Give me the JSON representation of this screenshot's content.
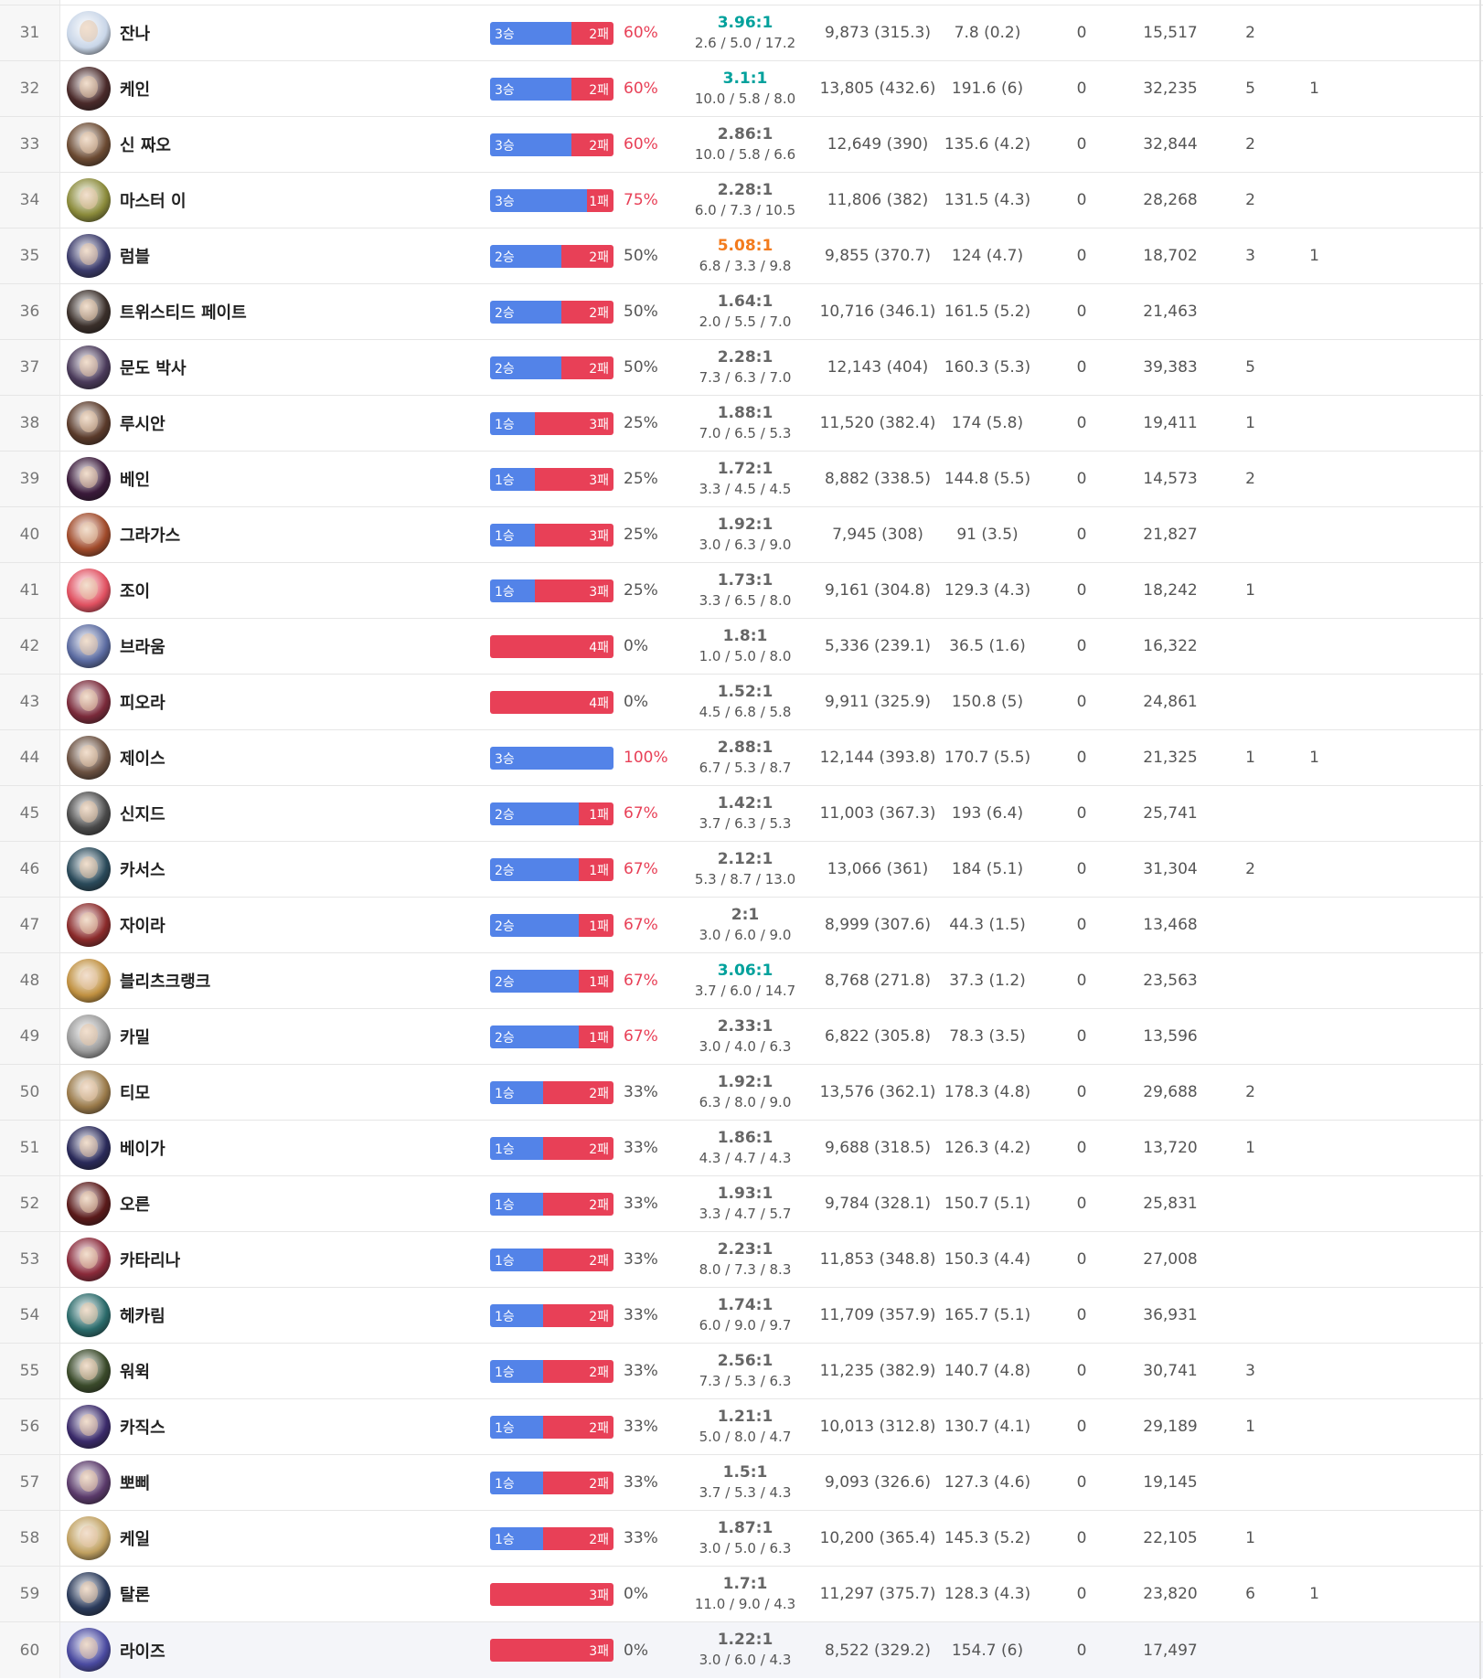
{
  "rows": [
    {
      "rank": "31",
      "name": "잔나",
      "wins": 3,
      "losses": 2,
      "win_label": "3승",
      "loss_label": "2패",
      "winrate": "60%",
      "ratio": "3.96:1",
      "kda": "2.6 / 5.0  / 17.2",
      "dmg": "9,873 (315.3)",
      "cs": "7.8 (0.2)",
      "zero": "0",
      "gold": "15,517",
      "a": "2",
      "b": "",
      "color": "#c9d6e8"
    },
    {
      "rank": "32",
      "name": "케인",
      "wins": 3,
      "losses": 2,
      "win_label": "3승",
      "loss_label": "2패",
      "winrate": "60%",
      "ratio": "3.1:1",
      "kda": "10.0 / 5.8  / 8.0",
      "dmg": "13,805 (432.6)",
      "cs": "191.6 (6)",
      "zero": "0",
      "gold": "32,235",
      "a": "5",
      "b": "1",
      "color": "#4a2a2a"
    },
    {
      "rank": "33",
      "name": "신 짜오",
      "wins": 3,
      "losses": 2,
      "win_label": "3승",
      "loss_label": "2패",
      "winrate": "60%",
      "ratio": "2.86:1",
      "kda": "10.0 / 5.8  / 6.6",
      "dmg": "12,649 (390)",
      "cs": "135.6 (4.2)",
      "zero": "0",
      "gold": "32,844",
      "a": "2",
      "b": "",
      "color": "#6b4a32"
    },
    {
      "rank": "34",
      "name": "마스터 이",
      "wins": 3,
      "losses": 1,
      "win_label": "3승",
      "loss_label": "1패",
      "winrate": "75%",
      "ratio": "2.28:1",
      "kda": "6.0 / 7.3  / 10.5",
      "dmg": "11,806 (382)",
      "cs": "131.5 (4.3)",
      "zero": "0",
      "gold": "28,268",
      "a": "2",
      "b": "",
      "color": "#8a8a3a"
    },
    {
      "rank": "35",
      "name": "럼블",
      "wins": 2,
      "losses": 2,
      "win_label": "2승",
      "loss_label": "2패",
      "winrate": "50%",
      "ratio": "5.08:1",
      "kda": "6.8 / 3.3  / 9.8",
      "dmg": "9,855 (370.7)",
      "cs": "124 (4.7)",
      "zero": "0",
      "gold": "18,702",
      "a": "3",
      "b": "1",
      "color": "#3a3a6a"
    },
    {
      "rank": "36",
      "name": "트위스티드 페이트",
      "wins": 2,
      "losses": 2,
      "win_label": "2승",
      "loss_label": "2패",
      "winrate": "50%",
      "ratio": "1.64:1",
      "kda": "2.0 / 5.5  / 7.0",
      "dmg": "10,716 (346.1)",
      "cs": "161.5 (5.2)",
      "zero": "0",
      "gold": "21,463",
      "a": "",
      "b": "",
      "color": "#3a2f2a"
    },
    {
      "rank": "37",
      "name": "문도 박사",
      "wins": 2,
      "losses": 2,
      "win_label": "2승",
      "loss_label": "2패",
      "winrate": "50%",
      "ratio": "2.28:1",
      "kda": "7.3 / 6.3  / 7.0",
      "dmg": "12,143 (404)",
      "cs": "160.3 (5.3)",
      "zero": "0",
      "gold": "39,383",
      "a": "5",
      "b": "",
      "color": "#4a3a5a"
    },
    {
      "rank": "38",
      "name": "루시안",
      "wins": 1,
      "losses": 3,
      "win_label": "1승",
      "loss_label": "3패",
      "winrate": "25%",
      "ratio": "1.88:1",
      "kda": "7.0 / 6.5  / 5.3",
      "dmg": "11,520 (382.4)",
      "cs": "174 (5.8)",
      "zero": "0",
      "gold": "19,411",
      "a": "1",
      "b": "",
      "color": "#5a3a2a"
    },
    {
      "rank": "39",
      "name": "베인",
      "wins": 1,
      "losses": 3,
      "win_label": "1승",
      "loss_label": "3패",
      "winrate": "25%",
      "ratio": "1.72:1",
      "kda": "3.3 / 4.5  / 4.5",
      "dmg": "8,882 (338.5)",
      "cs": "144.8 (5.5)",
      "zero": "0",
      "gold": "14,573",
      "a": "2",
      "b": "",
      "color": "#3a1a3a"
    },
    {
      "rank": "40",
      "name": "그라가스",
      "wins": 1,
      "losses": 3,
      "win_label": "1승",
      "loss_label": "3패",
      "winrate": "25%",
      "ratio": "1.92:1",
      "kda": "3.0 / 6.3  / 9.0",
      "dmg": "7,945 (308)",
      "cs": "91 (3.5)",
      "zero": "0",
      "gold": "21,827",
      "a": "",
      "b": "",
      "color": "#a04a2a"
    },
    {
      "rank": "41",
      "name": "조이",
      "wins": 1,
      "losses": 3,
      "win_label": "1승",
      "loss_label": "3패",
      "winrate": "25%",
      "ratio": "1.73:1",
      "kda": "3.3 / 6.5  / 8.0",
      "dmg": "9,161 (304.8)",
      "cs": "129.3 (4.3)",
      "zero": "0",
      "gold": "18,242",
      "a": "1",
      "b": "",
      "color": "#e05060"
    },
    {
      "rank": "42",
      "name": "브라움",
      "wins": 0,
      "losses": 4,
      "win_label": "",
      "loss_label": "4패",
      "winrate": "0%",
      "ratio": "1.8:1",
      "kda": "1.0 / 5.0  / 8.0",
      "dmg": "5,336 (239.1)",
      "cs": "36.5 (1.6)",
      "zero": "0",
      "gold": "16,322",
      "a": "",
      "b": "",
      "color": "#5a6aa0"
    },
    {
      "rank": "43",
      "name": "피오라",
      "wins": 0,
      "losses": 4,
      "win_label": "",
      "loss_label": "4패",
      "winrate": "0%",
      "ratio": "1.52:1",
      "kda": "4.5 / 6.8  / 5.8",
      "dmg": "9,911 (325.9)",
      "cs": "150.8 (5)",
      "zero": "0",
      "gold": "24,861",
      "a": "",
      "b": "",
      "color": "#7a2a3a"
    },
    {
      "rank": "44",
      "name": "제이스",
      "wins": 3,
      "losses": 0,
      "win_label": "3승",
      "loss_label": "",
      "winrate": "100%",
      "ratio": "2.88:1",
      "kda": "6.7 / 5.3  / 8.7",
      "dmg": "12,144 (393.8)",
      "cs": "170.7 (5.5)",
      "zero": "0",
      "gold": "21,325",
      "a": "1",
      "b": "1",
      "color": "#6a5040"
    },
    {
      "rank": "45",
      "name": "신지드",
      "wins": 2,
      "losses": 1,
      "win_label": "2승",
      "loss_label": "1패",
      "winrate": "67%",
      "ratio": "1.42:1",
      "kda": "3.7 / 6.3  / 5.3",
      "dmg": "11,003 (367.3)",
      "cs": "193 (6.4)",
      "zero": "0",
      "gold": "25,741",
      "a": "",
      "b": "",
      "color": "#4a4a4a"
    },
    {
      "rank": "46",
      "name": "카서스",
      "wins": 2,
      "losses": 1,
      "win_label": "2승",
      "loss_label": "1패",
      "winrate": "67%",
      "ratio": "2.12:1",
      "kda": "5.3 / 8.7  / 13.0",
      "dmg": "13,066 (361)",
      "cs": "184 (5.1)",
      "zero": "0",
      "gold": "31,304",
      "a": "2",
      "b": "",
      "color": "#2a4a5a"
    },
    {
      "rank": "47",
      "name": "자이라",
      "wins": 2,
      "losses": 1,
      "win_label": "2승",
      "loss_label": "1패",
      "winrate": "67%",
      "ratio": "2:1",
      "kda": "3.0 / 6.0  / 9.0",
      "dmg": "8,999 (307.6)",
      "cs": "44.3 (1.5)",
      "zero": "0",
      "gold": "13,468",
      "a": "",
      "b": "",
      "color": "#8a2a2a"
    },
    {
      "rank": "48",
      "name": "블리츠크랭크",
      "wins": 2,
      "losses": 1,
      "win_label": "2승",
      "loss_label": "1패",
      "winrate": "67%",
      "ratio": "3.06:1",
      "kda": "3.7 / 6.0  / 14.7",
      "dmg": "8,768 (271.8)",
      "cs": "37.3 (1.2)",
      "zero": "0",
      "gold": "23,563",
      "a": "",
      "b": "",
      "color": "#c09040"
    },
    {
      "rank": "49",
      "name": "카밀",
      "wins": 2,
      "losses": 1,
      "win_label": "2승",
      "loss_label": "1패",
      "winrate": "67%",
      "ratio": "2.33:1",
      "kda": "3.0 / 4.0  / 6.3",
      "dmg": "6,822 (305.8)",
      "cs": "78.3 (3.5)",
      "zero": "0",
      "gold": "13,596",
      "a": "",
      "b": "",
      "color": "#9a9a9a"
    },
    {
      "rank": "50",
      "name": "티모",
      "wins": 1,
      "losses": 2,
      "win_label": "1승",
      "loss_label": "2패",
      "winrate": "33%",
      "ratio": "1.92:1",
      "kda": "6.3 / 8.0  / 9.0",
      "dmg": "13,576 (362.1)",
      "cs": "178.3 (4.8)",
      "zero": "0",
      "gold": "29,688",
      "a": "2",
      "b": "",
      "color": "#9a7a4a"
    },
    {
      "rank": "51",
      "name": "베이가",
      "wins": 1,
      "losses": 2,
      "win_label": "1승",
      "loss_label": "2패",
      "winrate": "33%",
      "ratio": "1.86:1",
      "kda": "4.3 / 4.7  / 4.3",
      "dmg": "9,688 (318.5)",
      "cs": "126.3 (4.2)",
      "zero": "0",
      "gold": "13,720",
      "a": "1",
      "b": "",
      "color": "#2a2a5a"
    },
    {
      "rank": "52",
      "name": "오른",
      "wins": 1,
      "losses": 2,
      "win_label": "1승",
      "loss_label": "2패",
      "winrate": "33%",
      "ratio": "1.93:1",
      "kda": "3.3 / 4.7  / 5.7",
      "dmg": "9,784 (328.1)",
      "cs": "150.7 (5.1)",
      "zero": "0",
      "gold": "25,831",
      "a": "",
      "b": "",
      "color": "#5a1a1a"
    },
    {
      "rank": "53",
      "name": "카타리나",
      "wins": 1,
      "losses": 2,
      "win_label": "1승",
      "loss_label": "2패",
      "winrate": "33%",
      "ratio": "2.23:1",
      "kda": "8.0 / 7.3  / 8.3",
      "dmg": "11,853 (348.8)",
      "cs": "150.3 (4.4)",
      "zero": "0",
      "gold": "27,008",
      "a": "",
      "b": "",
      "color": "#8a2a3a"
    },
    {
      "rank": "54",
      "name": "헤카림",
      "wins": 1,
      "losses": 2,
      "win_label": "1승",
      "loss_label": "2패",
      "winrate": "33%",
      "ratio": "1.74:1",
      "kda": "6.0 / 9.0  / 9.7",
      "dmg": "11,709 (357.9)",
      "cs": "165.7 (5.1)",
      "zero": "0",
      "gold": "36,931",
      "a": "",
      "b": "",
      "color": "#2a6a6a"
    },
    {
      "rank": "55",
      "name": "워윅",
      "wins": 1,
      "losses": 2,
      "win_label": "1승",
      "loss_label": "2패",
      "winrate": "33%",
      "ratio": "2.56:1",
      "kda": "7.3 / 5.3  / 6.3",
      "dmg": "11,235 (382.9)",
      "cs": "140.7 (4.8)",
      "zero": "0",
      "gold": "30,741",
      "a": "3",
      "b": "",
      "color": "#3a4a2a"
    },
    {
      "rank": "56",
      "name": "카직스",
      "wins": 1,
      "losses": 2,
      "win_label": "1승",
      "loss_label": "2패",
      "winrate": "33%",
      "ratio": "1.21:1",
      "kda": "5.0 / 8.0  / 4.7",
      "dmg": "10,013 (312.8)",
      "cs": "130.7 (4.1)",
      "zero": "0",
      "gold": "29,189",
      "a": "1",
      "b": "",
      "color": "#3a2a6a"
    },
    {
      "rank": "57",
      "name": "뽀삐",
      "wins": 1,
      "losses": 2,
      "win_label": "1승",
      "loss_label": "2패",
      "winrate": "33%",
      "ratio": "1.5:1",
      "kda": "3.7 / 5.3  / 4.3",
      "dmg": "9,093 (326.6)",
      "cs": "127.3 (4.6)",
      "zero": "0",
      "gold": "19,145",
      "a": "",
      "b": "",
      "color": "#5a3a6a"
    },
    {
      "rank": "58",
      "name": "케일",
      "wins": 1,
      "losses": 2,
      "win_label": "1승",
      "loss_label": "2패",
      "winrate": "33%",
      "ratio": "1.87:1",
      "kda": "3.0 / 5.0  / 6.3",
      "dmg": "10,200 (365.4)",
      "cs": "145.3 (5.2)",
      "zero": "0",
      "gold": "22,105",
      "a": "1",
      "b": "",
      "color": "#c0a060"
    },
    {
      "rank": "59",
      "name": "탈론",
      "wins": 0,
      "losses": 3,
      "win_label": "",
      "loss_label": "3패",
      "winrate": "0%",
      "ratio": "1.7:1",
      "kda": "11.0 / 9.0  / 4.3",
      "dmg": "11,297 (375.7)",
      "cs": "128.3 (4.3)",
      "zero": "0",
      "gold": "23,820",
      "a": "6",
      "b": "1",
      "color": "#2a3a5a"
    },
    {
      "rank": "60",
      "name": "라이즈",
      "wins": 0,
      "losses": 3,
      "win_label": "",
      "loss_label": "3패",
      "winrate": "0%",
      "ratio": "1.22:1",
      "kda": "3.0 / 6.0  / 4.3",
      "dmg": "8,522 (329.2)",
      "cs": "154.7 (6)",
      "zero": "0",
      "gold": "17,497",
      "a": "",
      "b": "",
      "color": "#4a4aa0"
    }
  ],
  "colors": {
    "win": "#5383e8",
    "loss": "#e84057",
    "ratio_teal": "#00a19c",
    "ratio_orange": "#f37b1d"
  }
}
